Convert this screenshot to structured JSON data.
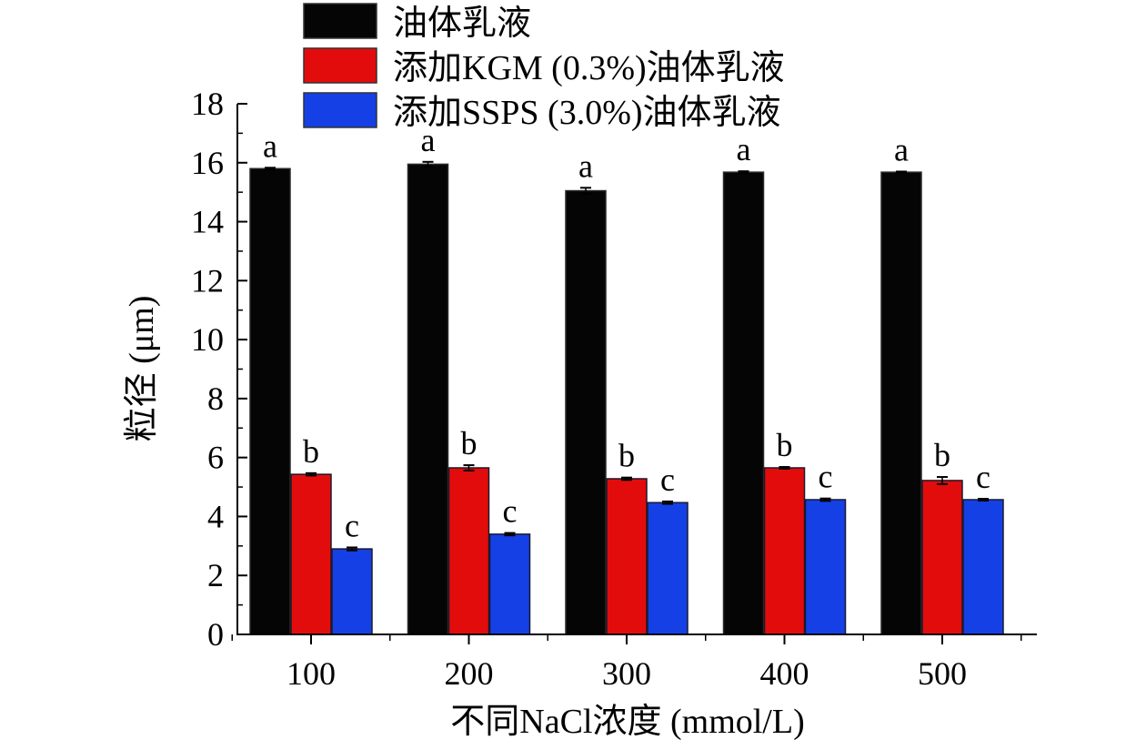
{
  "chart_data": {
    "type": "bar",
    "title": "",
    "xlabel": "不同NaCl浓度 (mmol/L)",
    "ylabel": "粒径 (μm)",
    "ylim": [
      0,
      18
    ],
    "yticks": [
      "0",
      "2",
      "4",
      "6",
      "8",
      "10",
      "12",
      "14",
      "16",
      "18"
    ],
    "categories": [
      "100",
      "200",
      "300",
      "400",
      "500"
    ],
    "legend_position": "top",
    "grid": false,
    "series": [
      {
        "name": "油体乳液",
        "color": "#050505",
        "values": [
          15.8,
          15.95,
          15.05,
          15.68,
          15.68
        ],
        "errors": [
          0.03,
          0.08,
          0.1,
          0.03,
          0.02
        ],
        "labels": [
          "a",
          "a",
          "a",
          "a",
          "a"
        ]
      },
      {
        "name": "添加KGM (0.3%)油体乳液",
        "color": "#e30c0c",
        "values": [
          5.43,
          5.65,
          5.28,
          5.65,
          5.22
        ],
        "errors": [
          0.04,
          0.09,
          0.04,
          0.03,
          0.12
        ],
        "labels": [
          "b",
          "b",
          "b",
          "b",
          "b"
        ]
      },
      {
        "name": "添加SSPS (3.0%)油体乳液",
        "color": "#1440e6",
        "values": [
          2.9,
          3.4,
          4.47,
          4.57,
          4.57
        ],
        "errors": [
          0.05,
          0.04,
          0.04,
          0.04,
          0.03
        ],
        "labels": [
          "c",
          "c",
          "c",
          "c",
          "c"
        ]
      }
    ]
  }
}
